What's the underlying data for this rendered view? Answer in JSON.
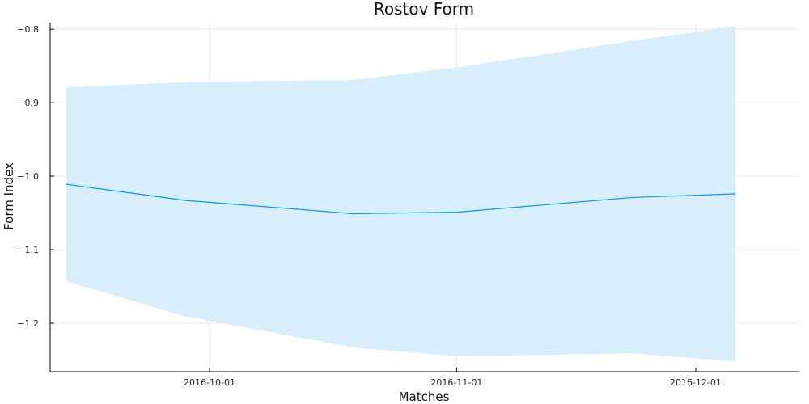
{
  "chart_data": {
    "type": "line",
    "title": "Rostov Form",
    "xlabel": "Matches",
    "ylabel": "Form Index",
    "x_type": "date",
    "xlim": [
      "2016-09-11",
      "2016-12-14"
    ],
    "ylim": [
      -1.266,
      -0.791
    ],
    "x_ticks": [
      "2016-10-01",
      "2016-11-01",
      "2016-12-01"
    ],
    "y_ticks": [
      -1.2,
      -1.1,
      -1.0,
      -0.9,
      -0.8
    ],
    "y_tick_labels": [
      "−1.2",
      "−1.1",
      "−1.0",
      "−0.9",
      "−0.8"
    ],
    "grid": true,
    "legend": "none",
    "colors": {
      "line": "#009AF9",
      "band": "#D8EEFB"
    },
    "series": [
      {
        "x": [
          "2016-09-13",
          "2016-09-28",
          "2016-10-19",
          "2016-11-01",
          "2016-11-23",
          "2016-12-06"
        ],
        "values": [
          -1.011,
          -1.033,
          -1.051,
          -1.049,
          -1.029,
          -1.024
        ],
        "lower": [
          -1.143,
          -1.191,
          -1.233,
          -1.245,
          -1.241,
          -1.252
        ],
        "upper": [
          -0.879,
          -0.872,
          -0.869,
          -0.852,
          -0.816,
          -0.796
        ]
      }
    ]
  }
}
